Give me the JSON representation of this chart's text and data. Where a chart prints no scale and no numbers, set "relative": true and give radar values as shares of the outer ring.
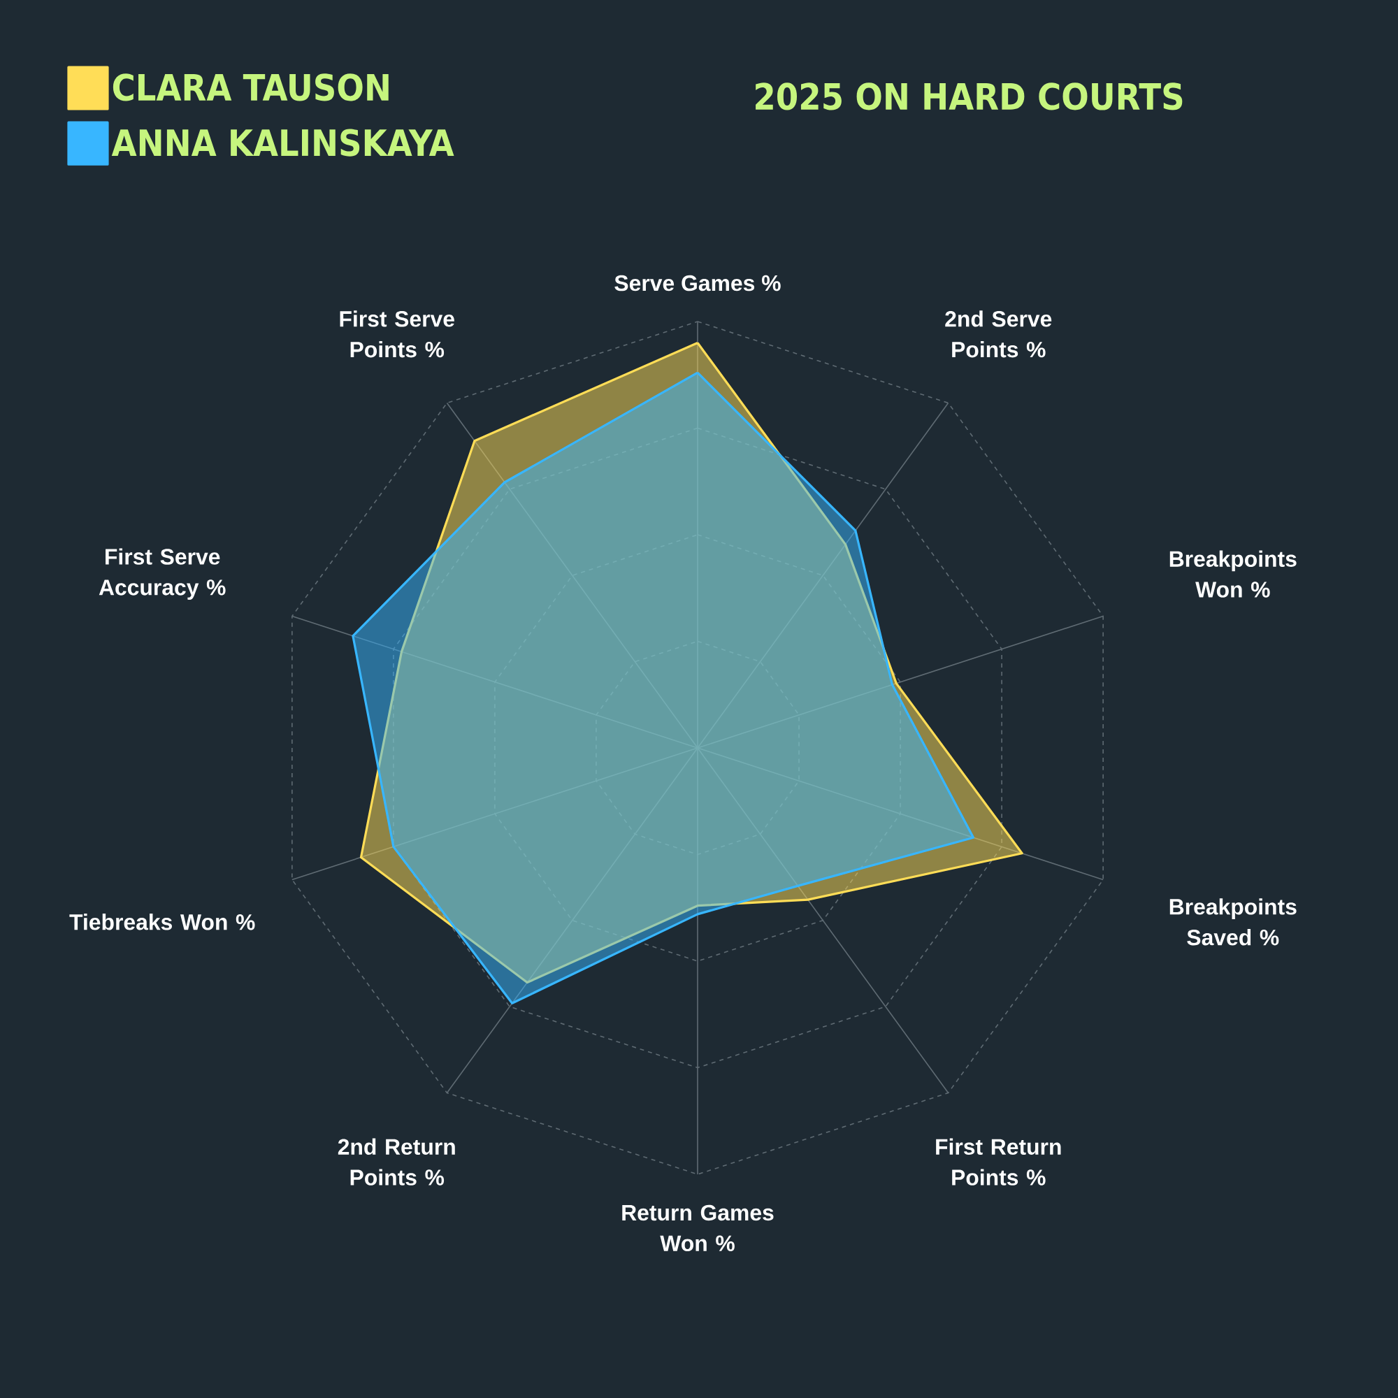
{
  "chart_data": {
    "type": "radar",
    "title": "2025 ON HARD COURTS",
    "relative": true,
    "grid": true,
    "legend": "top left",
    "categories": [
      "Serve Games %",
      "2nd Serve Points %",
      "Breakpoints Won %",
      "Breakpoints Saved %",
      "First Return Points %",
      "Return Games Won %",
      "2nd Return Points %",
      "Tiebreaks Won %",
      "First Serve Accuracy %",
      "First Serve Points %"
    ],
    "series": [
      {
        "name": "CLARA TAUSON",
        "color": "#ffdd57",
        "values": [
          0.95,
          0.59,
          0.49,
          0.8,
          0.44,
          0.37,
          0.68,
          0.83,
          0.73,
          0.89
        ]
      },
      {
        "name": "ANNA KALINSKAYA",
        "color": "#38b6ff",
        "values": [
          0.88,
          0.63,
          0.48,
          0.68,
          0.4,
          0.39,
          0.74,
          0.75,
          0.85,
          0.77
        ]
      }
    ]
  }
}
